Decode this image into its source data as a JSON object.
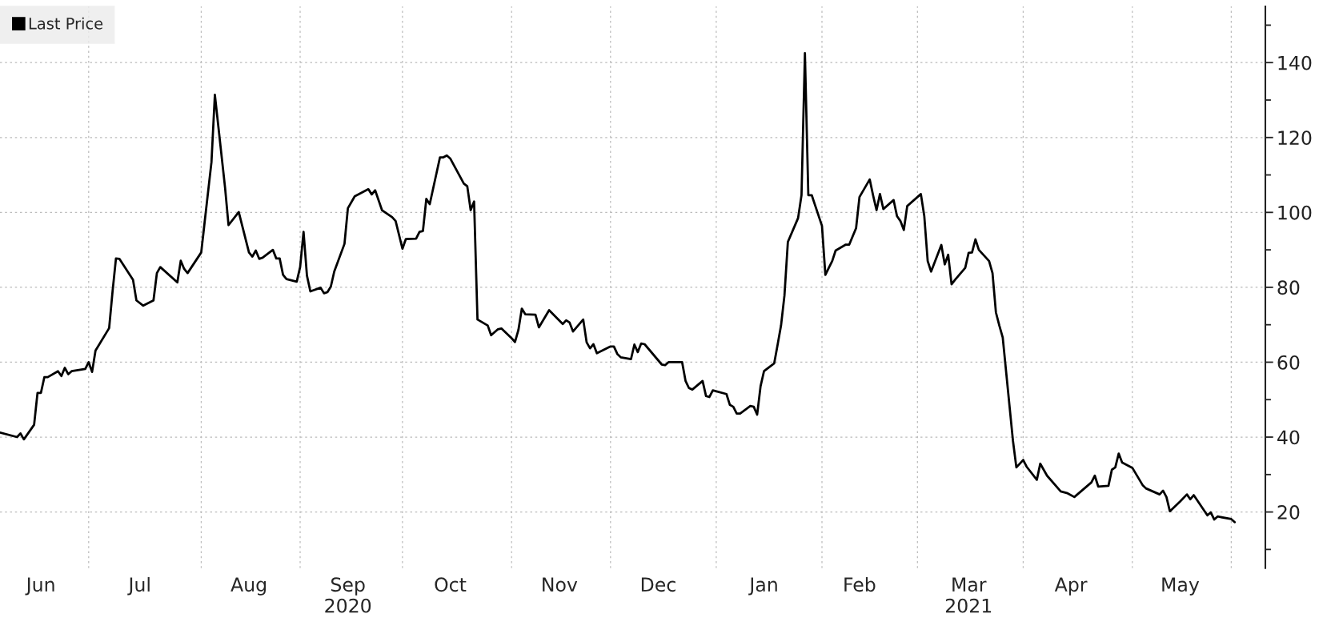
{
  "chart_data": {
    "type": "line",
    "x": [
      "2020-06-05",
      "2020-06-10",
      "2020-06-11",
      "2020-06-12",
      "2020-06-15",
      "2020-06-16",
      "2020-06-17",
      "2020-06-18",
      "2020-06-19",
      "2020-06-22",
      "2020-06-23",
      "2020-06-24",
      "2020-06-25",
      "2020-06-26",
      "2020-06-30",
      "2020-07-01",
      "2020-07-02",
      "2020-07-03",
      "2020-07-07",
      "2020-07-08",
      "2020-07-09",
      "2020-07-10",
      "2020-07-14",
      "2020-07-15",
      "2020-07-17",
      "2020-07-20",
      "2020-07-21",
      "2020-07-22",
      "2020-07-27",
      "2020-07-28",
      "2020-07-29",
      "2020-07-30",
      "2020-08-03",
      "2020-08-04",
      "2020-08-06",
      "2020-08-07",
      "2020-08-10",
      "2020-08-11",
      "2020-08-14",
      "2020-08-17",
      "2020-08-18",
      "2020-08-19",
      "2020-08-20",
      "2020-08-21",
      "2020-08-24",
      "2020-08-25",
      "2020-08-26",
      "2020-08-27",
      "2020-08-28",
      "2020-08-31",
      "2020-09-01",
      "2020-09-02",
      "2020-09-03",
      "2020-09-04",
      "2020-09-07",
      "2020-09-08",
      "2020-09-09",
      "2020-09-10",
      "2020-09-11",
      "2020-09-14",
      "2020-09-15",
      "2020-09-17",
      "2020-09-21",
      "2020-09-22",
      "2020-09-23",
      "2020-09-25",
      "2020-09-28",
      "2020-09-29",
      "2020-10-01",
      "2020-10-02",
      "2020-10-05",
      "2020-10-06",
      "2020-10-07",
      "2020-10-08",
      "2020-10-09",
      "2020-10-12",
      "2020-10-13",
      "2020-10-14",
      "2020-10-15",
      "2020-10-19",
      "2020-10-20",
      "2020-10-21",
      "2020-10-22",
      "2020-10-23",
      "2020-10-26",
      "2020-10-27",
      "2020-10-29",
      "2020-10-30",
      "2020-11-02",
      "2020-11-03",
      "2020-11-04",
      "2020-11-05",
      "2020-11-06",
      "2020-11-09",
      "2020-11-10",
      "2020-11-13",
      "2020-11-17",
      "2020-11-18",
      "2020-11-19",
      "2020-11-20",
      "2020-11-23",
      "2020-11-24",
      "2020-11-25",
      "2020-11-26",
      "2020-11-27",
      "2020-12-01",
      "2020-12-02",
      "2020-12-03",
      "2020-12-04",
      "2020-12-07",
      "2020-12-08",
      "2020-12-09",
      "2020-12-10",
      "2020-12-11",
      "2020-12-16",
      "2020-12-17",
      "2020-12-18",
      "2020-12-22",
      "2020-12-23",
      "2020-12-24",
      "2020-12-25",
      "2020-12-28",
      "2020-12-29",
      "2020-12-30",
      "2020-12-31",
      "2021-01-04",
      "2021-01-05",
      "2021-01-06",
      "2021-01-07",
      "2021-01-08",
      "2021-01-11",
      "2021-01-12",
      "2021-01-13",
      "2021-01-14",
      "2021-01-15",
      "2021-01-18",
      "2021-01-19",
      "2021-01-20",
      "2021-01-21",
      "2021-01-22",
      "2021-01-25",
      "2021-01-26",
      "2021-01-27",
      "2021-01-28",
      "2021-01-29",
      "2021-02-01",
      "2021-02-02",
      "2021-02-03",
      "2021-02-04",
      "2021-02-05",
      "2021-02-08",
      "2021-02-09",
      "2021-02-11",
      "2021-02-12",
      "2021-02-15",
      "2021-02-16",
      "2021-02-17",
      "2021-02-18",
      "2021-02-19",
      "2021-02-22",
      "2021-02-23",
      "2021-02-24",
      "2021-02-25",
      "2021-02-26",
      "2021-03-02",
      "2021-03-03",
      "2021-03-04",
      "2021-03-05",
      "2021-03-08",
      "2021-03-09",
      "2021-03-10",
      "2021-03-11",
      "2021-03-12",
      "2021-03-15",
      "2021-03-16",
      "2021-03-17",
      "2021-03-18",
      "2021-03-19",
      "2021-03-22",
      "2021-03-23",
      "2021-03-24",
      "2021-03-25",
      "2021-03-26",
      "2021-03-29",
      "2021-03-30",
      "2021-04-01",
      "2021-04-02",
      "2021-04-05",
      "2021-04-06",
      "2021-04-08",
      "2021-04-12",
      "2021-04-14",
      "2021-04-16",
      "2021-04-21",
      "2021-04-22",
      "2021-04-23",
      "2021-04-26",
      "2021-04-27",
      "2021-04-28",
      "2021-04-29",
      "2021-04-30",
      "2021-05-03",
      "2021-05-06",
      "2021-05-07",
      "2021-05-11",
      "2021-05-12",
      "2021-05-13",
      "2021-05-14",
      "2021-05-17",
      "2021-05-19",
      "2021-05-20",
      "2021-05-21",
      "2021-05-25",
      "2021-05-26",
      "2021-05-27",
      "2021-05-28",
      "2021-06-01",
      "2021-06-02"
    ],
    "series": [
      {
        "name": "Last Price",
        "color": "#000000",
        "values": [
          41.2,
          40.0,
          41.0,
          39.4,
          43.3,
          51.8,
          51.8,
          56.0,
          56.0,
          57.6,
          56.3,
          58.5,
          56.8,
          57.6,
          58.2,
          60.0,
          57.4,
          63.1,
          69.1,
          78.9,
          87.7,
          87.6,
          82.0,
          76.5,
          75.1,
          76.5,
          83.8,
          85.4,
          81.3,
          87.1,
          84.9,
          83.8,
          89.3,
          97.4,
          113.4,
          131.4,
          106.5,
          96.6,
          100.1,
          89.3,
          88.2,
          89.8,
          87.6,
          87.9,
          90.0,
          87.7,
          87.7,
          83.3,
          82.2,
          81.5,
          85.4,
          94.8,
          83.1,
          78.9,
          79.9,
          78.4,
          78.7,
          80.2,
          84.2,
          91.6,
          101.1,
          104.3,
          106.2,
          104.8,
          105.9,
          100.6,
          98.7,
          97.7,
          90.3,
          92.9,
          93.0,
          94.8,
          95.0,
          103.6,
          102.2,
          114.7,
          114.7,
          115.2,
          114.4,
          107.7,
          107.0,
          100.6,
          102.9,
          71.4,
          69.8,
          67.2,
          68.8,
          69.0,
          66.4,
          65.4,
          68.6,
          74.3,
          72.8,
          72.7,
          69.3,
          73.9,
          70.2,
          71.2,
          70.6,
          68.2,
          71.4,
          65.3,
          63.7,
          64.8,
          62.4,
          64.2,
          64.2,
          62.2,
          61.3,
          60.8,
          64.7,
          62.7,
          65.0,
          64.8,
          59.4,
          59.2,
          60.0,
          60.0,
          55.0,
          53.1,
          52.7,
          55.0,
          51.0,
          50.7,
          52.5,
          51.5,
          48.6,
          48.1,
          46.3,
          46.3,
          48.3,
          48.1,
          46.0,
          53.6,
          57.6,
          59.7,
          64.7,
          69.8,
          77.8,
          92.1,
          98.5,
          104.6,
          142.5,
          104.6,
          104.6,
          96.4,
          83.3,
          85.2,
          87.0,
          89.8,
          91.4,
          91.4,
          95.8,
          104.1,
          108.8,
          104.5,
          100.6,
          104.9,
          100.9,
          103.3,
          99.0,
          97.7,
          95.3,
          101.7,
          104.9,
          99.0,
          87.0,
          84.2,
          91.3,
          86.1,
          88.7,
          80.8,
          82.0,
          85.2,
          89.2,
          89.3,
          92.8,
          90.0,
          87.0,
          83.8,
          73.3,
          69.8,
          66.6,
          39.0,
          31.9,
          33.9,
          32.1,
          28.6,
          32.9,
          29.7,
          25.5,
          25.0,
          24.0,
          27.9,
          29.7,
          26.8,
          27.0,
          31.3,
          31.9,
          35.6,
          33.2,
          31.8,
          27.2,
          26.3,
          24.7,
          25.7,
          24.0,
          20.2,
          22.8,
          24.7,
          23.4,
          24.5,
          19.1,
          19.9,
          18.0,
          18.8,
          18.1,
          17.3
        ]
      }
    ],
    "xlim": [
      "2020-06-05",
      "2021-06-11"
    ],
    "xticks": [
      {
        "value": "2020-06-17",
        "label": "Jun"
      },
      {
        "value": "2020-07-01",
        "label": null
      },
      {
        "value": "2020-07-16",
        "label": "Jul"
      },
      {
        "value": "2020-08-03",
        "label": null
      },
      {
        "value": "2020-08-17",
        "label": "Aug"
      },
      {
        "value": "2020-09-01",
        "label": null
      },
      {
        "value": "2020-09-15",
        "label": "Sep\n2020"
      },
      {
        "value": "2020-10-01",
        "label": null
      },
      {
        "value": "2020-10-15",
        "label": "Oct"
      },
      {
        "value": "2020-11-02",
        "label": null
      },
      {
        "value": "2020-11-16",
        "label": "Nov"
      },
      {
        "value": "2020-12-01",
        "label": null
      },
      {
        "value": "2020-12-15",
        "label": "Dec"
      },
      {
        "value": "2021-01-01",
        "label": null
      },
      {
        "value": "2021-01-15",
        "label": "Jan"
      },
      {
        "value": "2021-02-01",
        "label": null
      },
      {
        "value": "2021-02-12",
        "label": "Feb"
      },
      {
        "value": "2021-03-01",
        "label": null
      },
      {
        "value": "2021-03-16",
        "label": "Mar\n2021"
      },
      {
        "value": "2021-04-01",
        "label": null
      },
      {
        "value": "2021-04-15",
        "label": "Apr"
      },
      {
        "value": "2021-05-03",
        "label": null
      },
      {
        "value": "2021-05-17",
        "label": "May"
      },
      {
        "value": "2021-06-01",
        "label": null
      }
    ],
    "ylim": [
      5,
      155
    ],
    "yticks": [
      {
        "value": 10,
        "label": null
      },
      20,
      {
        "value": 30,
        "label": null
      },
      40,
      {
        "value": 50,
        "label": null
      },
      60,
      {
        "value": 70,
        "label": null
      },
      80,
      {
        "value": 90,
        "label": null
      },
      100,
      {
        "value": 110,
        "label": null
      },
      120,
      {
        "value": 130,
        "label": null
      },
      140,
      {
        "value": 150,
        "label": null
      }
    ],
    "grid": true,
    "legend": "top left",
    "line_style": "solid",
    "marker": "none"
  }
}
